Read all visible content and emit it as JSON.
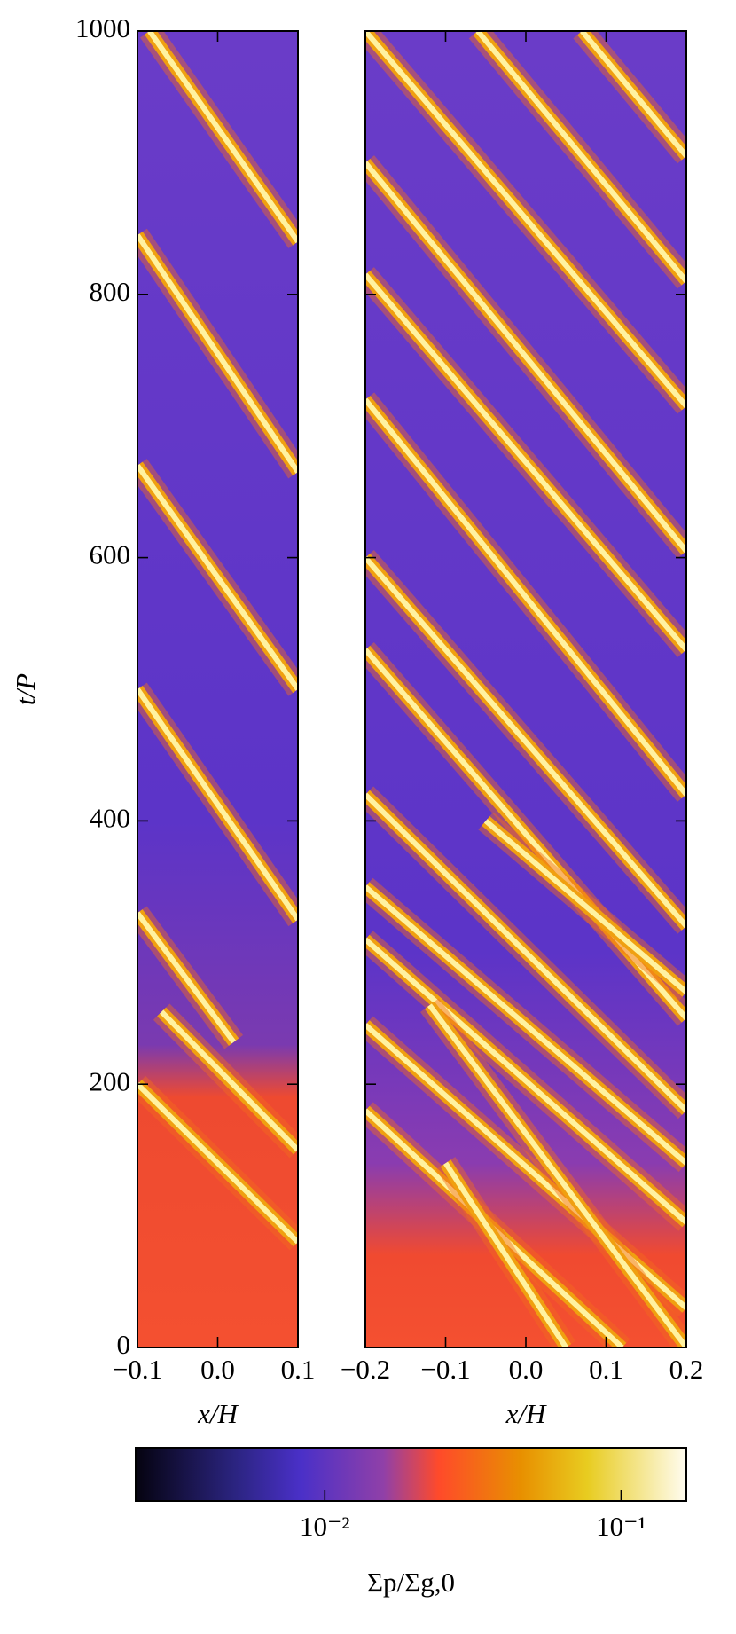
{
  "chart_data": [
    {
      "type": "heatmap",
      "xlabel": "x/H",
      "ylabel": "t/P",
      "xlim": [
        -0.1,
        0.1
      ],
      "xticks": [
        {
          "value": -0.1,
          "label": "−0.1"
        },
        {
          "value": 0,
          "label": "0.0"
        },
        0.1
      ],
      "ylim": [
        0,
        1000
      ],
      "yticks": [
        0,
        200,
        400,
        600,
        800,
        1000
      ]
    },
    {
      "type": "heatmap",
      "xlabel": "x/H",
      "xlim": [
        -0.2,
        0.2
      ],
      "xticks": [
        {
          "value": -0.2,
          "label": "−0.2"
        },
        {
          "value": -0.1,
          "label": "−0.1"
        },
        {
          "value": 0,
          "label": "0.0"
        },
        0.1,
        0.2
      ],
      "ylim": [
        0,
        1000
      ]
    },
    {
      "type": "colorbar",
      "label": "Σp/Σg,0",
      "scale": "log",
      "clim": [
        0.0023,
        0.166
      ],
      "ticks": [
        {
          "value": 0.01,
          "label": "10⁻²"
        },
        {
          "value": 0.1,
          "label": "10⁻¹"
        }
      ]
    }
  ]
}
